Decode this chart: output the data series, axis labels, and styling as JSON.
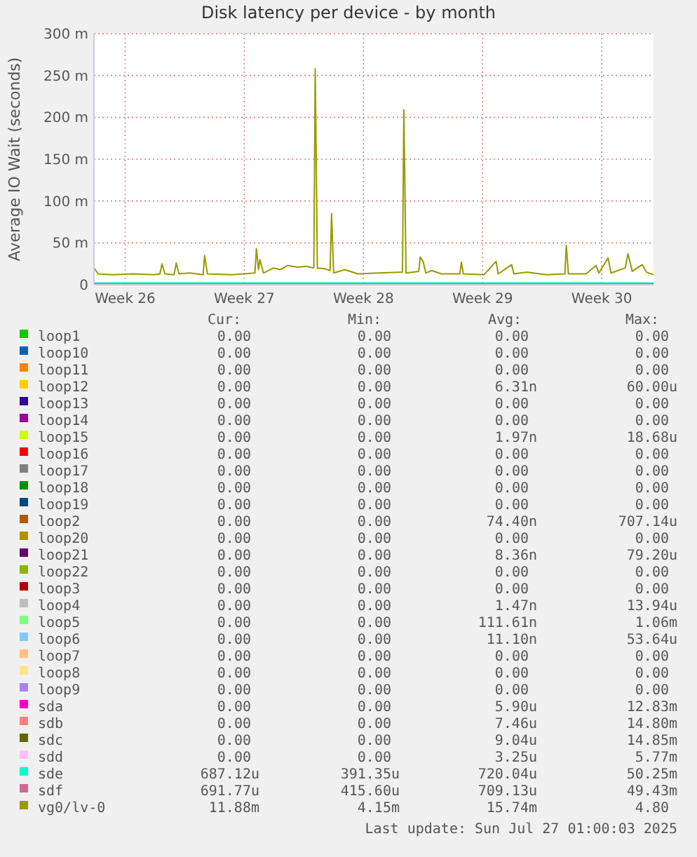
{
  "chart_data": {
    "type": "line",
    "title": "Disk latency per device - by month",
    "ylabel": "Average IO Wait (seconds)",
    "xlim": [
      "2025-06-24T04:00",
      "2025-07-27T01:00"
    ],
    "xticks": [
      {
        "value": "2025-06-26",
        "label": "Week 26"
      },
      {
        "value": "2025-07-03",
        "label": "Week 27"
      },
      {
        "value": "2025-07-10",
        "label": "Week 28"
      },
      {
        "value": "2025-07-17",
        "label": "Week 29"
      },
      {
        "value": "2025-07-24",
        "label": "Week 30"
      }
    ],
    "ylim": [
      0,
      300
    ],
    "yticks": [
      0,
      {
        "value": 50,
        "label": "50 m"
      },
      {
        "value": 100,
        "label": "100 m"
      },
      {
        "value": 150,
        "label": "150 m"
      },
      {
        "value": 200,
        "label": "200 m"
      },
      {
        "value": 250,
        "label": "250 m"
      },
      {
        "value": 300,
        "label": "300 m"
      }
    ],
    "grid": true,
    "legend": "bottom",
    "series": [
      {
        "name": "loop1",
        "color": "#00cc00",
        "values": [
          null
        ]
      },
      {
        "name": "loop10",
        "color": "#0066b3",
        "values": [
          null
        ]
      },
      {
        "name": "loop11",
        "color": "#ff8000",
        "values": [
          null
        ]
      },
      {
        "name": "loop12",
        "color": "#ffcc00",
        "values": [
          null
        ]
      },
      {
        "name": "loop13",
        "color": "#330099",
        "values": [
          null
        ]
      },
      {
        "name": "loop14",
        "color": "#990099",
        "values": [
          null
        ]
      },
      {
        "name": "loop15",
        "color": "#ccff00",
        "values": [
          null
        ]
      },
      {
        "name": "loop16",
        "color": "#ff0000",
        "values": [
          null
        ]
      },
      {
        "name": "loop17",
        "color": "#808080",
        "values": [
          null
        ]
      },
      {
        "name": "loop18",
        "color": "#008f00",
        "values": [
          null
        ]
      },
      {
        "name": "loop19",
        "color": "#00487d",
        "values": [
          null
        ]
      },
      {
        "name": "loop2",
        "color": "#b35a00",
        "values": [
          null
        ]
      },
      {
        "name": "loop20",
        "color": "#b38f00",
        "values": [
          null
        ]
      },
      {
        "name": "loop21",
        "color": "#6b006b",
        "values": [
          null
        ]
      },
      {
        "name": "loop22",
        "color": "#8fb300",
        "values": [
          null
        ]
      },
      {
        "name": "loop3",
        "color": "#b30000",
        "values": [
          null
        ]
      },
      {
        "name": "loop4",
        "color": "#bebebe",
        "values": [
          null
        ]
      },
      {
        "name": "loop5",
        "color": "#80ff80",
        "values": [
          null
        ]
      },
      {
        "name": "loop6",
        "color": "#80c9ff",
        "values": [
          null
        ]
      },
      {
        "name": "loop7",
        "color": "#ffc080",
        "values": [
          null
        ]
      },
      {
        "name": "loop8",
        "color": "#ffe680",
        "values": [
          null
        ]
      },
      {
        "name": "loop9",
        "color": "#aa80ff",
        "values": [
          null
        ]
      },
      {
        "name": "sda",
        "color": "#ee00cc",
        "values": [
          null
        ]
      },
      {
        "name": "sdb",
        "color": "#ff8080",
        "values": [
          null
        ]
      },
      {
        "name": "sdc",
        "color": "#666600",
        "values": [
          null
        ]
      },
      {
        "name": "sdd",
        "color": "#ffbfff",
        "values": [
          null
        ]
      },
      {
        "name": "sde",
        "color": "#00ffcc",
        "x": [
          "2025-06-24T04:00",
          "2025-07-27T01:00"
        ],
        "values": [
          2,
          2
        ]
      },
      {
        "name": "sdf",
        "color": "#cc6699",
        "x": [
          "2025-06-24T04:00",
          "2025-07-27T01:00"
        ],
        "values": [
          1,
          1
        ]
      },
      {
        "name": "vg0/lv-0",
        "color": "#999900",
        "x": [
          "2025-06-24T04:00",
          "2025-06-24T10:00",
          "2025-06-25T06:00",
          "2025-06-26T11:00",
          "2025-06-27T17:00",
          "2025-06-28T01:00",
          "2025-06-28T04:00",
          "2025-06-28T08:00",
          "2025-06-28T21:00",
          "2025-06-29T00:00",
          "2025-06-29T04:00",
          "2025-06-29T19:00",
          "2025-06-30T14:00",
          "2025-06-30T16:00",
          "2025-06-30T20:00",
          "2025-07-02T06:00",
          "2025-07-03T15:00",
          "2025-07-03T17:00",
          "2025-07-03T20:00",
          "2025-07-03T22:00",
          "2025-07-04T03:00",
          "2025-07-04T17:00",
          "2025-07-05T03:00",
          "2025-07-05T13:00",
          "2025-07-06T03:00",
          "2025-07-06T15:00",
          "2025-07-07T02:00",
          "2025-07-07T04:00",
          "2025-07-07T07:00",
          "2025-07-07T18:00",
          "2025-07-08T01:00",
          "2025-07-08T03:00",
          "2025-07-08T06:00",
          "2025-07-08T22:00",
          "2025-07-09T16:00",
          "2025-07-10T21:00",
          "2025-07-12T07:00",
          "2025-07-12T09:00",
          "2025-07-12T12:00",
          "2025-07-13T06:00",
          "2025-07-13T08:00",
          "2025-07-13T12:00",
          "2025-07-13T16:00",
          "2025-07-14T00:00",
          "2025-07-14T14:00",
          "2025-07-15T16:00",
          "2025-07-15T18:00",
          "2025-07-15T21:00",
          "2025-07-17T02:00",
          "2025-07-17T19:00",
          "2025-07-17T22:00",
          "2025-07-18T17:00",
          "2025-07-18T20:00",
          "2025-07-19T15:00",
          "2025-07-20T18:00",
          "2025-07-21T20:00",
          "2025-07-21T22:00",
          "2025-07-22T01:00",
          "2025-07-23T02:00",
          "2025-07-23T16:00",
          "2025-07-23T20:00",
          "2025-07-24T09:00",
          "2025-07-24T13:00",
          "2025-07-25T09:00",
          "2025-07-25T13:00",
          "2025-07-25T19:00",
          "2025-07-26T09:00",
          "2025-07-26T15:00",
          "2025-07-27T01:00"
        ],
        "values": [
          20,
          13,
          12,
          13,
          12,
          13,
          25,
          13,
          12,
          26,
          13,
          14,
          12,
          35,
          13,
          12,
          14,
          43,
          18,
          30,
          14,
          20,
          18,
          23,
          21,
          22,
          20,
          258,
          20,
          19,
          17,
          85,
          14,
          18,
          13,
          14,
          15,
          209,
          14,
          16,
          33,
          28,
          14,
          17,
          13,
          13,
          27,
          13,
          12,
          28,
          13,
          24,
          13,
          15,
          12,
          13,
          47,
          13,
          13,
          23,
          14,
          32,
          14,
          20,
          37,
          16,
          24,
          15,
          12
        ]
      }
    ],
    "annotations": [
      "Cur:",
      "Min:",
      "Avg:",
      "Max:",
      "0.00",
      "0.00",
      "0.00",
      "0.00",
      "0.00",
      "0.00",
      "0.00",
      "0.00",
      "0.00",
      "0.00",
      "0.00",
      "0.00",
      "0.00",
      "0.00",
      "6.31n",
      "60.00u",
      "0.00",
      "0.00",
      "0.00",
      "0.00",
      "0.00",
      "0.00",
      "0.00",
      "0.00",
      "0.00",
      "0.00",
      "1.97n",
      "18.68u",
      "0.00",
      "0.00",
      "0.00",
      "0.00",
      "0.00",
      "0.00",
      "0.00",
      "0.00",
      "0.00",
      "0.00",
      "0.00",
      "0.00",
      "0.00",
      "0.00",
      "0.00",
      "0.00",
      "0.00",
      "0.00",
      "74.40n",
      "707.14u",
      "0.00",
      "0.00",
      "0.00",
      "0.00",
      "0.00",
      "0.00",
      "8.36n",
      "79.20u",
      "0.00",
      "0.00",
      "0.00",
      "0.00",
      "0.00",
      "0.00",
      "0.00",
      "0.00",
      "0.00",
      "0.00",
      "1.47n",
      "13.94u",
      "0.00",
      "0.00",
      "111.61n",
      "1.06m",
      "0.00",
      "0.00",
      "11.10n",
      "53.64u",
      "0.00",
      "0.00",
      "0.00",
      "0.00",
      "0.00",
      "0.00",
      "0.00",
      "0.00",
      "0.00",
      "0.00",
      "0.00",
      "0.00",
      "0.00",
      "0.00",
      "5.90u",
      "12.83m",
      "0.00",
      "0.00",
      "7.46u",
      "14.80m",
      "0.00",
      "0.00",
      "9.04u",
      "14.85m",
      "0.00",
      "0.00",
      "3.25u",
      "5.77m",
      "687.12u",
      "391.35u",
      "720.04u",
      "50.25m",
      "691.77u",
      "415.60u",
      "709.13u",
      "49.43m",
      "11.88m",
      "4.15m",
      "15.74m",
      "4.80",
      "Last update: Sun Jul 27 01:00:03 2025"
    ]
  }
}
